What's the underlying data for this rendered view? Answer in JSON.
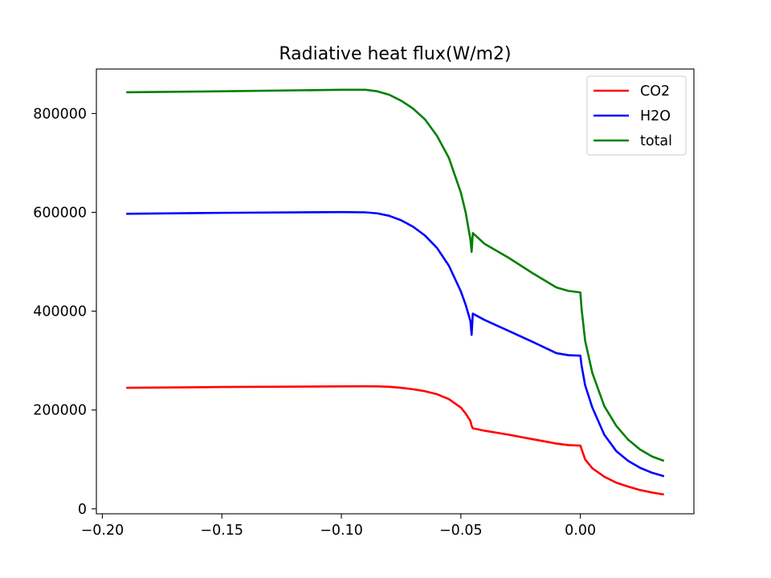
{
  "chart_data": {
    "type": "line",
    "title": "Radiative heat flux(W/m2)",
    "xlabel": "",
    "ylabel": "",
    "xlim": [
      -0.2025,
      0.0475
    ],
    "ylim": [
      -10000,
      890000
    ],
    "x_ticks": [
      -0.2,
      -0.15,
      -0.1,
      -0.05,
      0.0
    ],
    "x_tick_labels": [
      "−0.20",
      "−0.15",
      "−0.10",
      "−0.05",
      "0.00"
    ],
    "y_ticks": [
      0,
      200000,
      400000,
      600000,
      800000
    ],
    "y_tick_labels": [
      "0",
      "200000",
      "400000",
      "600000",
      "800000"
    ],
    "grid": false,
    "legend_position": "top-right",
    "series": [
      {
        "name": "CO2",
        "color": "#ff0000",
        "x": [
          -0.19,
          -0.15,
          -0.1,
          -0.09,
          -0.085,
          -0.08,
          -0.075,
          -0.07,
          -0.065,
          -0.06,
          -0.055,
          -0.05,
          -0.048,
          -0.046,
          -0.0455,
          -0.045,
          -0.04,
          -0.03,
          -0.02,
          -0.01,
          -0.005,
          0.0,
          0.0005,
          0.002,
          0.005,
          0.01,
          0.015,
          0.02,
          0.025,
          0.03,
          0.035
        ],
        "y": [
          245000,
          246500,
          247800,
          248000,
          247800,
          247000,
          245000,
          242000,
          238000,
          232000,
          222000,
          205000,
          193000,
          178000,
          168000,
          163000,
          158000,
          150000,
          141000,
          132000,
          129000,
          128000,
          121000,
          100000,
          82000,
          65000,
          53000,
          45000,
          38000,
          33000,
          29000
        ]
      },
      {
        "name": "H2O",
        "color": "#0000ff",
        "x": [
          -0.19,
          -0.15,
          -0.1,
          -0.09,
          -0.085,
          -0.08,
          -0.075,
          -0.07,
          -0.065,
          -0.06,
          -0.055,
          -0.05,
          -0.048,
          -0.046,
          -0.0455,
          -0.045,
          -0.04,
          -0.03,
          -0.02,
          -0.01,
          -0.005,
          0.0,
          0.0005,
          0.002,
          0.005,
          0.01,
          0.015,
          0.02,
          0.025,
          0.03,
          0.035
        ],
        "y": [
          597000,
          599000,
          600500,
          600000,
          598000,
          593000,
          584000,
          571000,
          553000,
          528000,
          492000,
          440000,
          413000,
          380000,
          352000,
          395000,
          382000,
          360000,
          338000,
          315000,
          311000,
          310000,
          290000,
          250000,
          205000,
          150000,
          117000,
          97000,
          83000,
          73000,
          66000
        ]
      },
      {
        "name": "total",
        "color": "#008000",
        "x": [
          -0.19,
          -0.15,
          -0.1,
          -0.09,
          -0.085,
          -0.08,
          -0.075,
          -0.07,
          -0.065,
          -0.06,
          -0.055,
          -0.05,
          -0.048,
          -0.046,
          -0.0455,
          -0.045,
          -0.04,
          -0.03,
          -0.02,
          -0.01,
          -0.005,
          0.0,
          0.0005,
          0.002,
          0.005,
          0.01,
          0.015,
          0.02,
          0.025,
          0.03,
          0.035
        ],
        "y": [
          843000,
          845000,
          848000,
          848000,
          845000,
          838000,
          826000,
          810000,
          788000,
          755000,
          710000,
          640000,
          600000,
          545000,
          520000,
          558000,
          536000,
          508000,
          477000,
          448000,
          441000,
          438000,
          405000,
          340000,
          275000,
          208000,
          168000,
          140000,
          120000,
          106000,
          97000
        ]
      }
    ]
  }
}
